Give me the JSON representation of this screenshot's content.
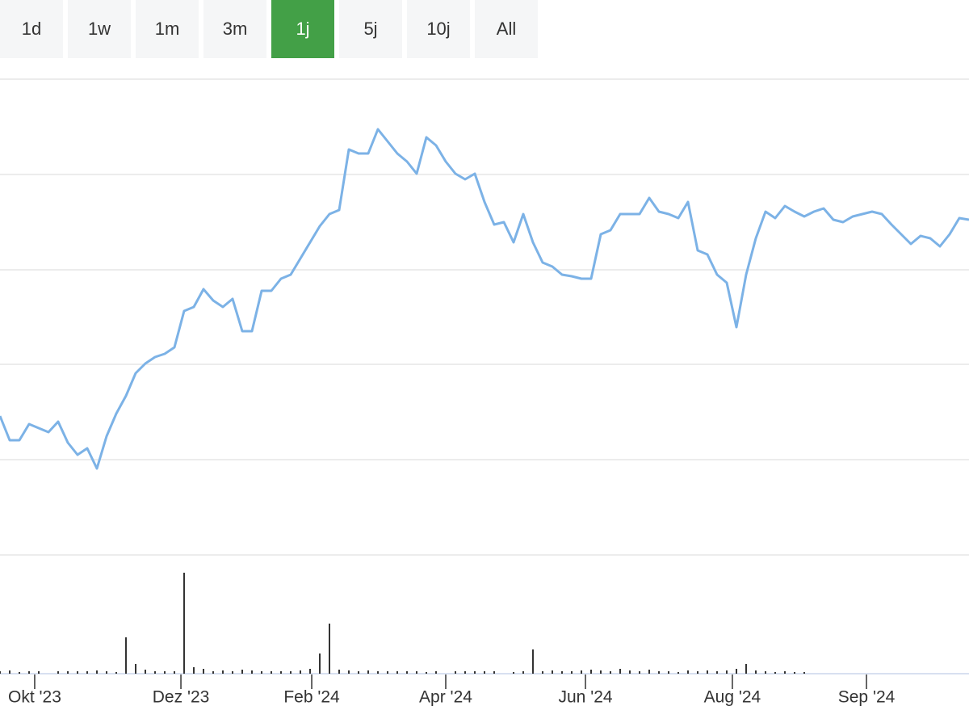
{
  "range_buttons": {
    "labels": [
      "1d",
      "1w",
      "1m",
      "3m",
      "1j",
      "5j",
      "10j",
      "All"
    ],
    "active": 4
  },
  "chart_data": {
    "type": "line",
    "xlim": [
      0,
      100
    ],
    "xticks": [
      {
        "value": 3.58,
        "label": "Okt '23"
      },
      {
        "value": 18.67,
        "label": "Dez '23"
      },
      {
        "value": 32.17,
        "label": "Feb '24"
      },
      {
        "value": 46,
        "label": "Apr '24"
      },
      {
        "value": 60.42,
        "label": "Jun '24"
      },
      {
        "value": 75.58,
        "label": "Aug '24"
      },
      {
        "value": 89.42,
        "label": "Sep '24"
      }
    ],
    "ylim": [
      0,
      589
    ],
    "yticks": [
      0,
      118,
      236,
      353,
      471,
      589
    ],
    "grid": true,
    "y2lim": [
      0,
      147
    ],
    "y2ticks": [
      0
    ],
    "series": [
      {
        "type": "line",
        "color": "#7cb2e6",
        "values": [
          172,
          142,
          142,
          162,
          157,
          152,
          165,
          139,
          124,
          132,
          107,
          147,
          175,
          197,
          225,
          237,
          245,
          249,
          257,
          302,
          307,
          329,
          315,
          307,
          317,
          277,
          277,
          327,
          327,
          342,
          347,
          367,
          387,
          407,
          422,
          427,
          502,
          497,
          497,
          527,
          512,
          497,
          487,
          472,
          517,
          507,
          487,
          472,
          465,
          472,
          437,
          409,
          412,
          387,
          422,
          387,
          362,
          357,
          347,
          345,
          342,
          342,
          397,
          402,
          422,
          422,
          422,
          442,
          425,
          422,
          417,
          437,
          377,
          372,
          347,
          337,
          282,
          347,
          392,
          425,
          417,
          432,
          425,
          419,
          425,
          429,
          415,
          412,
          419,
          422,
          425,
          422,
          409,
          397,
          385,
          395,
          392,
          382,
          397,
          417,
          415
        ]
      },
      {
        "type": "bar",
        "axis": "y2",
        "color": "#333333",
        "values": [
          3,
          4,
          2,
          3,
          3,
          0,
          3,
          3,
          3,
          3,
          4,
          3,
          2,
          45,
          12,
          5,
          3,
          3,
          3,
          125,
          8,
          6,
          3,
          4,
          3,
          5,
          4,
          3,
          3,
          3,
          3,
          4,
          6,
          25,
          62,
          5,
          4,
          3,
          4,
          3,
          3,
          3,
          3,
          3,
          2,
          3,
          0,
          3,
          3,
          3,
          3,
          3,
          0,
          2,
          3,
          30,
          3,
          4,
          3,
          3,
          4,
          5,
          4,
          3,
          6,
          4,
          3,
          5,
          3,
          3,
          2,
          4,
          3,
          4,
          3,
          4,
          6,
          12,
          4,
          3,
          2,
          3,
          2,
          2,
          0,
          0,
          0,
          0,
          0,
          0,
          0,
          0,
          0,
          0,
          0,
          0,
          0,
          0,
          0,
          0,
          0
        ]
      }
    ]
  }
}
